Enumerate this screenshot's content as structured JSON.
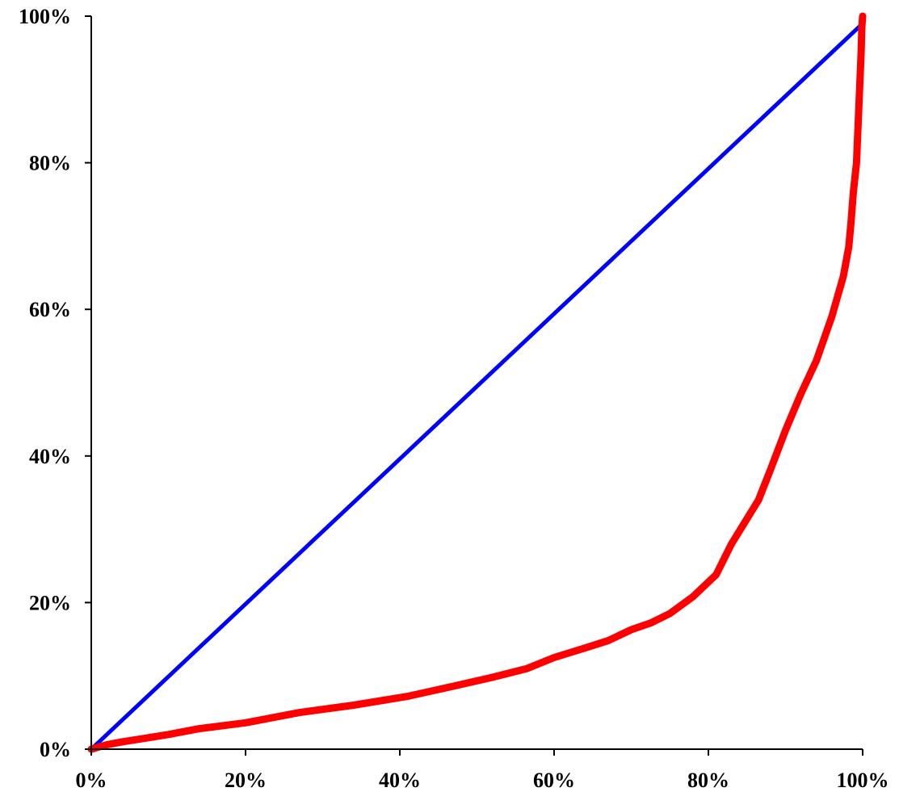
{
  "chart_data": {
    "type": "line",
    "title": "",
    "xlabel": "",
    "ylabel": "",
    "xlim": [
      0,
      100
    ],
    "ylim": [
      0,
      100
    ],
    "grid": false,
    "legend": "none",
    "x_ticks": [
      "0%",
      "20%",
      "40%",
      "60%",
      "80%",
      "100%"
    ],
    "x_tick_values": [
      0,
      20,
      40,
      60,
      80,
      100
    ],
    "y_ticks": [
      "0%",
      "20%",
      "40%",
      "60%",
      "80%",
      "100%"
    ],
    "y_tick_values": [
      0,
      20,
      40,
      60,
      80,
      100
    ],
    "series": [
      {
        "color": "#0000ff",
        "points": [
          [
            0,
            0
          ],
          [
            100,
            99
          ]
        ]
      },
      {
        "color": "#ff0000",
        "points": [
          [
            0,
            0
          ],
          [
            2,
            0.6
          ],
          [
            4,
            1
          ],
          [
            7,
            1.5
          ],
          [
            10,
            2
          ],
          [
            14,
            2.8
          ],
          [
            20,
            3.6
          ],
          [
            27,
            5
          ],
          [
            34,
            6
          ],
          [
            41,
            7.2
          ],
          [
            47,
            8.6
          ],
          [
            52,
            9.8
          ],
          [
            56.5,
            11
          ],
          [
            60,
            12.5
          ],
          [
            64,
            13.8
          ],
          [
            67,
            14.8
          ],
          [
            70,
            16.3
          ],
          [
            72.5,
            17.2
          ],
          [
            75,
            18.5
          ],
          [
            78,
            20.8
          ],
          [
            81,
            23.8
          ],
          [
            83,
            28
          ],
          [
            86.5,
            34
          ],
          [
            88,
            38
          ],
          [
            90,
            43.5
          ],
          [
            92,
            48.5
          ],
          [
            94,
            53
          ],
          [
            96,
            59
          ],
          [
            97.5,
            64.5
          ],
          [
            98.2,
            68.5
          ],
          [
            98.5,
            72
          ],
          [
            98.8,
            76
          ],
          [
            99.2,
            80
          ],
          [
            99.4,
            85
          ],
          [
            99.6,
            90
          ],
          [
            99.8,
            95
          ],
          [
            99.9,
            98.5
          ],
          [
            100,
            100
          ]
        ]
      }
    ]
  }
}
